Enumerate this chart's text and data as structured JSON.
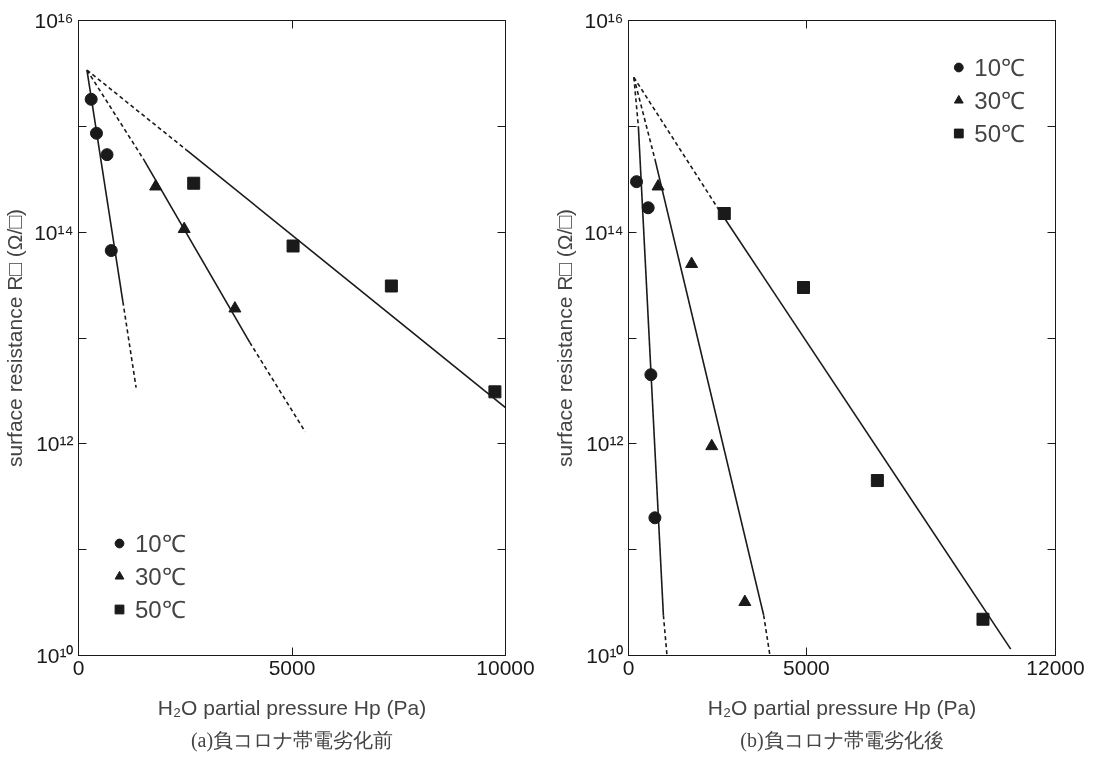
{
  "chart_data": [
    {
      "type": "scatter",
      "title": "(a)負コロナ帯電劣化前",
      "xlabel": "H₂O partial pressure Hp (Pa)",
      "ylabel": "surface resistance R□ (Ω/□)",
      "log": true,
      "grid": false,
      "legend": "bottom left",
      "xlim": [
        0,
        10000
      ],
      "xticks": [
        0,
        5000,
        10000
      ],
      "ylim": [
        10000000000.0,
        1e+16
      ],
      "yticks": [
        {
          "value": 10000000000.0,
          "label": "10¹⁰"
        },
        {
          "value": 100000000000.0,
          "label": null
        },
        {
          "value": 1000000000000.0,
          "label": "10¹²"
        },
        {
          "value": 10000000000000.0,
          "label": null
        },
        {
          "value": 100000000000000.0,
          "label": "10¹⁴"
        },
        {
          "value": 1000000000000000.0,
          "label": null
        },
        {
          "value": 1e+16,
          "label": "10¹⁶"
        }
      ],
      "series": [
        {
          "name": "10℃",
          "color": "#1a1a1a",
          "marker": "circle",
          "x": [
            297,
            421,
            668,
            767
          ],
          "values": [
            1800000000000000.0,
            860000000000000.0,
            540000000000000.0,
            67000000000000.0
          ]
        },
        {
          "name": "30℃",
          "color": "#1a1a1a",
          "marker": "triangle",
          "x": [
            1807,
            2475,
            3663
          ],
          "values": [
            270000000000000.0,
            107000000000000.0,
            19000000000000.0
          ]
        },
        {
          "name": "50℃",
          "color": "#1a1a1a",
          "marker": "square",
          "x": [
            2698,
            5025,
            7327,
            9752
          ],
          "values": [
            290000000000000.0,
            74000000000000.0,
            31000000000000.0,
            3100000000000.0
          ]
        },
        {
          "type": "line",
          "color": "#1a1a1a",
          "line_style": "solid",
          "x": [
            198,
            1040
          ],
          "values": [
            3400000000000000.0,
            22000000000000.0
          ]
        },
        {
          "type": "line",
          "color": "#1a1a1a",
          "line_style": "dashed",
          "x": [
            1040,
            1349
          ],
          "values": [
            22000000000000.0,
            3400000000000.0
          ]
        },
        {
          "type": "line",
          "color": "#1a1a1a",
          "line_style": "dashed",
          "x": [
            198,
            1535
          ],
          "values": [
            3400000000000000.0,
            480000000000000.0
          ]
        },
        {
          "type": "line",
          "color": "#1a1a1a",
          "line_style": "solid",
          "x": [
            1535,
            4010
          ],
          "values": [
            480000000000000.0,
            9100000000000.0
          ]
        },
        {
          "type": "line",
          "color": "#1a1a1a",
          "line_style": "dashed",
          "x": [
            4010,
            5309
          ],
          "values": [
            9100000000000.0,
            1300000000000.0
          ]
        },
        {
          "type": "line",
          "color": "#1a1a1a",
          "line_style": "dashed",
          "x": [
            198,
            2525
          ],
          "values": [
            3400000000000000.0,
            600000000000000.0
          ]
        },
        {
          "type": "line",
          "color": "#1a1a1a",
          "line_style": "solid",
          "x": [
            2525,
            10000
          ],
          "values": [
            600000000000000.0,
            2200000000000.0
          ]
        }
      ]
    },
    {
      "type": "scatter",
      "title": "(b)負コロナ帯電劣化後",
      "xlabel": "H₂O partial pressure Hp (Pa)",
      "ylabel": "surface resistance R□ (Ω/□)",
      "log": true,
      "grid": false,
      "legend": "top right",
      "xlim": [
        0,
        12000
      ],
      "xticks": [
        0,
        5000,
        12000
      ],
      "ylim": [
        10000000000.0,
        1e+16
      ],
      "yticks": [
        {
          "value": 10000000000.0,
          "label": "10¹⁰"
        },
        {
          "value": 100000000000.0,
          "label": null
        },
        {
          "value": 1000000000000.0,
          "label": "10¹²"
        },
        {
          "value": 10000000000000.0,
          "label": null
        },
        {
          "value": 100000000000000.0,
          "label": "10¹⁴"
        },
        {
          "value": 1000000000000000.0,
          "label": null
        },
        {
          "value": 1e+16,
          "label": "10¹⁶"
        }
      ],
      "series": [
        {
          "name": "10℃",
          "color": "#1a1a1a",
          "marker": "circle",
          "x": [
            226,
            553,
            629,
            742
          ],
          "values": [
            300000000000000.0,
            170000000000000.0,
            4500000000000.0,
            200000000000.0
          ]
        },
        {
          "name": "30℃",
          "color": "#1a1a1a",
          "marker": "triangle",
          "x": [
            830,
            1774,
            2340,
            3270
          ],
          "values": [
            270000000000000.0,
            50000000000000.0,
            950000000000.0,
            32000000000.0
          ]
        },
        {
          "name": "50℃",
          "color": "#1a1a1a",
          "marker": "square",
          "x": [
            2692,
            4918,
            6994,
            9962
          ],
          "values": [
            150000000000000.0,
            30000000000000.0,
            450000000000.0,
            22000000000.0
          ]
        },
        {
          "type": "line",
          "color": "#1a1a1a",
          "line_style": "dashed",
          "x": [
            151,
            277
          ],
          "values": [
            2900000000000000.0,
            1000000000000000.0
          ]
        },
        {
          "type": "line",
          "color": "#1a1a1a",
          "line_style": "solid",
          "x": [
            277,
            981
          ],
          "values": [
            1000000000000000.0,
            24000000000.0
          ]
        },
        {
          "type": "line",
          "color": "#1a1a1a",
          "line_style": "dashed",
          "x": [
            981,
            1082
          ],
          "values": [
            24000000000.0,
            10000000000.0
          ]
        },
        {
          "type": "line",
          "color": "#1a1a1a",
          "line_style": "dashed",
          "x": [
            151,
            742
          ],
          "values": [
            2900000000000000.0,
            490000000000000.0
          ]
        },
        {
          "type": "line",
          "color": "#1a1a1a",
          "line_style": "solid",
          "x": [
            742,
            3799
          ],
          "values": [
            490000000000000.0,
            24000000000.0
          ]
        },
        {
          "type": "line",
          "color": "#1a1a1a",
          "line_style": "dashed",
          "x": [
            3799,
            3975
          ],
          "values": [
            24000000000.0,
            10000000000.0
          ]
        },
        {
          "type": "line",
          "color": "#1a1a1a",
          "line_style": "dashed",
          "x": [
            151,
            2503
          ],
          "values": [
            2900000000000000.0,
            170000000000000.0
          ]
        },
        {
          "type": "line",
          "color": "#1a1a1a",
          "line_style": "solid",
          "x": [
            2503,
            10742
          ],
          "values": [
            170000000000000.0,
            11500000000.0
          ]
        }
      ]
    }
  ]
}
